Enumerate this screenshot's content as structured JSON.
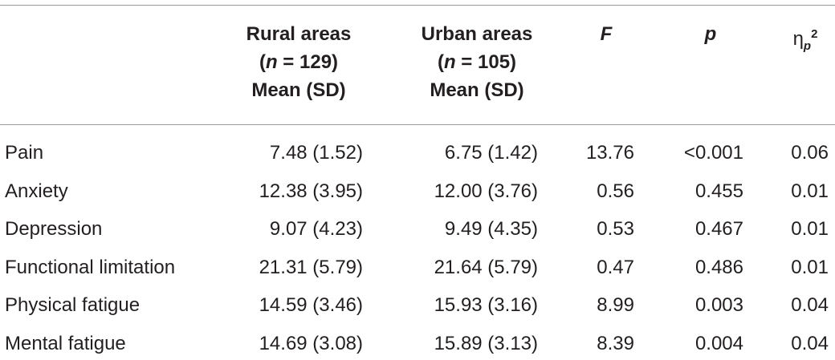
{
  "table": {
    "columns": {
      "rural": {
        "line1": "Rural areas",
        "n_prefix": "(",
        "n_var": "n",
        "n_suffix": " = 129)",
        "line3": "Mean (SD)"
      },
      "urban": {
        "line1": "Urban areas",
        "n_prefix": "(",
        "n_var": "n",
        "n_suffix": " = 105)",
        "line3": "Mean (SD)"
      },
      "f": "F",
      "p": "p",
      "eta": {
        "base": "η",
        "sub": "p",
        "sup": "2"
      }
    },
    "rows": [
      {
        "label": "Pain",
        "rural": "7.48 (1.52)",
        "urban": "6.75 (1.42)",
        "f": "13.76",
        "p": "<0.001",
        "eta": "0.06"
      },
      {
        "label": "Anxiety",
        "rural": "12.38 (3.95)",
        "urban": "12.00 (3.76)",
        "f": "0.56",
        "p": "0.455",
        "eta": "0.01"
      },
      {
        "label": "Depression",
        "rural": "9.07 (4.23)",
        "urban": "9.49 (4.35)",
        "f": "0.53",
        "p": "0.467",
        "eta": "0.01"
      },
      {
        "label": "Functional limitation",
        "rural": "21.31 (5.79)",
        "urban": "21.64 (5.79)",
        "f": "0.47",
        "p": "0.486",
        "eta": "0.01"
      },
      {
        "label": "Physical fatigue",
        "rural": "14.59 (3.46)",
        "urban": "15.93 (3.16)",
        "f": "8.99",
        "p": "0.003",
        "eta": "0.04"
      },
      {
        "label": "Mental fatigue",
        "rural": "14.69 (3.08)",
        "urban": "15.89 (3.13)",
        "f": "8.39",
        "p": "0.004",
        "eta": "0.04"
      }
    ]
  }
}
